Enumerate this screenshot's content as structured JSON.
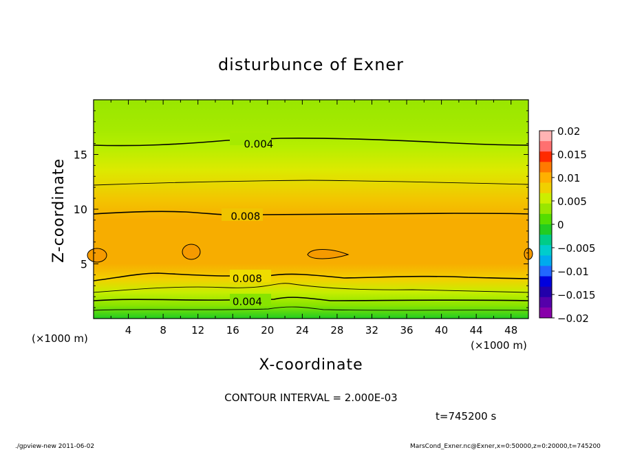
{
  "chart_data": {
    "type": "contour",
    "title": "disturbunce of Exner",
    "xlabel": "X-coordinate",
    "ylabel": "Z-coordinate",
    "x_unit_left": "(×1000 m)",
    "x_unit_right": "(×1000 m)",
    "xlim": [
      0,
      50
    ],
    "ylim": [
      0,
      20
    ],
    "x_ticks": [
      "4",
      "8",
      "12",
      "16",
      "20",
      "24",
      "28",
      "32",
      "36",
      "40",
      "44",
      "48"
    ],
    "x_tick_values": [
      4,
      8,
      12,
      16,
      20,
      24,
      28,
      32,
      36,
      40,
      44,
      48
    ],
    "y_ticks": [
      "5",
      "10",
      "15"
    ],
    "y_tick_values": [
      5,
      10,
      15
    ],
    "contour_labels": [
      {
        "text": "0.004",
        "x": 18.5,
        "z": 16.0
      },
      {
        "text": "0.008",
        "x": 17.0,
        "z": 9.4
      },
      {
        "text": "0.008",
        "x": 17.2,
        "z": 3.7
      },
      {
        "text": "0.004",
        "x": 17.2,
        "z": 1.6
      }
    ],
    "contour_levels": [
      0.002,
      0.004,
      0.006,
      0.008,
      0.01
    ],
    "contour_interval": "CONTOUR INTERVAL = 2.000E-03",
    "max_region_value": 0.01,
    "colorbar": {
      "labels": [
        "0.02",
        "0.015",
        "0.01",
        "0.005",
        "0",
        "−0.005",
        "−0.01",
        "−0.015",
        "−0.02"
      ],
      "values": [
        0.02,
        0.015,
        0.01,
        0.005,
        0,
        -0.005,
        -0.01,
        -0.015,
        -0.02
      ],
      "colors": [
        "#ffb3b3",
        "#ff7070",
        "#ff2a00",
        "#ff7a00",
        "#ffb000",
        "#f0d000",
        "#ccee00",
        "#99e600",
        "#55dd00",
        "#22cc22",
        "#00cc88",
        "#00cccc",
        "#00aaee",
        "#2266ff",
        "#0000dd",
        "#2200aa",
        "#5500aa",
        "#8800aa"
      ]
    }
  },
  "footer": {
    "time": "t=745200 s",
    "left_note": "./gpview-new  2011-06-02",
    "right_note": "MarsCond_Exner.nc@Exner,x=0:50000,z=0:20000,t=745200"
  }
}
